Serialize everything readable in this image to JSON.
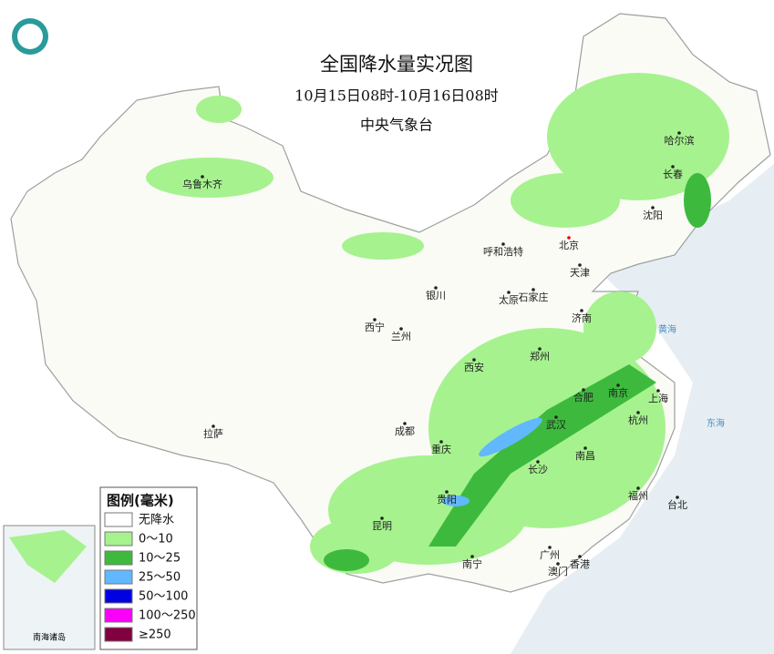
{
  "header": {
    "title": "全国降水量实况图",
    "subtitle": "10月15日08时-10月16日08时",
    "agency": "中央气象台"
  },
  "cities": [
    "乌鲁木齐",
    "哈尔滨",
    "长春",
    "沈阳",
    "呼和浩特",
    "北京",
    "天津",
    "石家庄",
    "银川",
    "太原",
    "济南",
    "西宁",
    "兰州",
    "郑州",
    "西安",
    "合肥",
    "南京",
    "上海",
    "武汉",
    "杭州",
    "成都",
    "拉萨",
    "重庆",
    "长沙",
    "南昌",
    "福州",
    "台北",
    "贵阳",
    "昆明",
    "南宁",
    "广州",
    "澳门",
    "香港"
  ],
  "seas": [
    "黄海",
    "东海"
  ],
  "legend": {
    "title": "图例(毫米)",
    "items": [
      {
        "label": "无降水",
        "color": "#ffffff"
      },
      {
        "label": "0～10",
        "color": "#a6f28f"
      },
      {
        "label": "10～25",
        "color": "#3dba3d"
      },
      {
        "label": "25～50",
        "color": "#61b8ff"
      },
      {
        "label": "50～100",
        "color": "#0000e1"
      },
      {
        "label": "100～250",
        "color": "#fa00fa"
      },
      {
        "label": "≥250",
        "color": "#800040"
      }
    ]
  },
  "inset": {
    "label": "南海诸岛"
  }
}
